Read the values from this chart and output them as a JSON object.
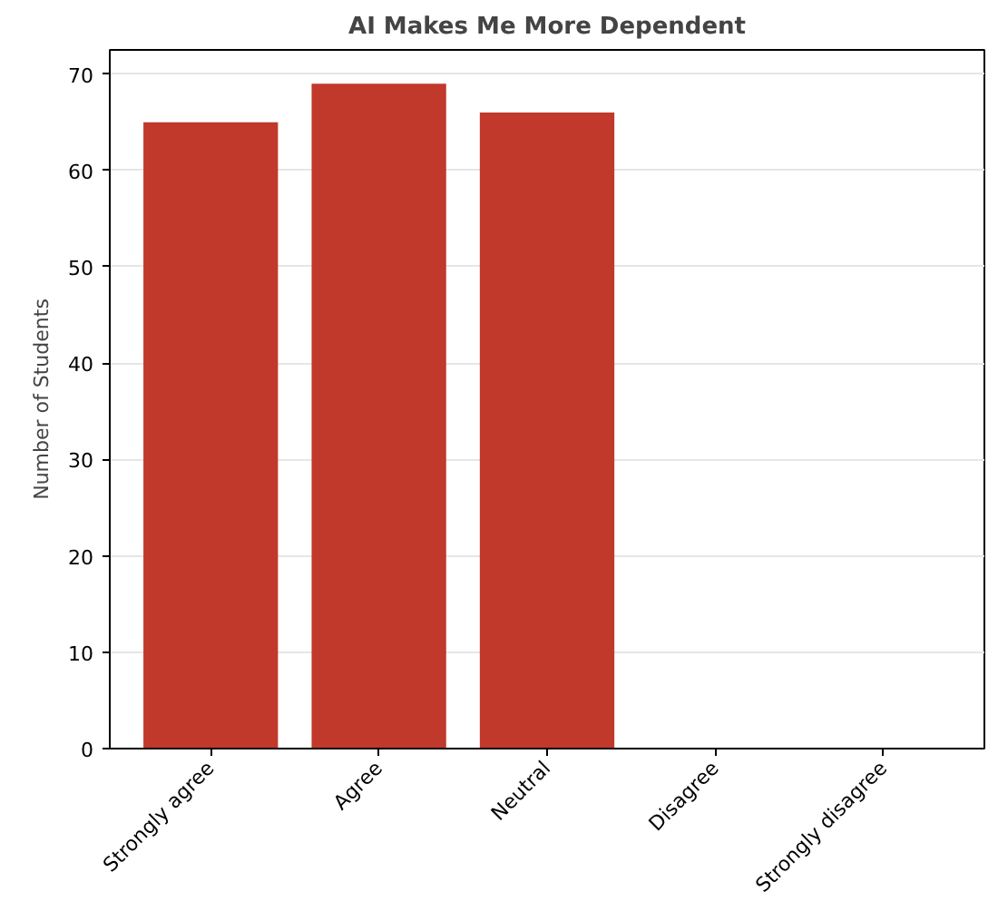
{
  "chart_data": {
    "type": "bar",
    "title": "AI Makes Me More Dependent",
    "ylabel": "Number of Students",
    "categories": [
      "Strongly agree",
      "Agree",
      "Neutral",
      "Disagree",
      "Strongly disagree"
    ],
    "values": [
      65,
      69,
      66,
      0,
      0
    ],
    "color": "#c0392b",
    "ylim": [
      0,
      72.5
    ],
    "yticks": [
      0,
      10,
      20,
      30,
      40,
      50,
      60,
      70
    ],
    "grid": "y"
  }
}
